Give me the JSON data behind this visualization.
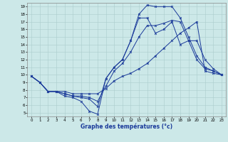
{
  "xlabel": "Graphe des températures (°c)",
  "xlim": [
    -0.5,
    23.5
  ],
  "ylim": [
    4.5,
    19.5
  ],
  "yticks": [
    5,
    6,
    7,
    8,
    9,
    10,
    11,
    12,
    13,
    14,
    15,
    16,
    17,
    18,
    19
  ],
  "xticks": [
    0,
    1,
    2,
    3,
    4,
    5,
    6,
    7,
    8,
    9,
    10,
    11,
    12,
    13,
    14,
    15,
    16,
    17,
    18,
    19,
    20,
    21,
    22,
    23
  ],
  "background_color": "#cce8e8",
  "line_color": "#1a3a9a",
  "grid_color": "#aacccc",
  "lines": [
    {
      "x": [
        0,
        1,
        2,
        3,
        4,
        5,
        6,
        7,
        8,
        9,
        10,
        11,
        12,
        13,
        14,
        15,
        16,
        17,
        18,
        19,
        20,
        21,
        22,
        23
      ],
      "y": [
        9.8,
        9.0,
        7.8,
        7.8,
        7.2,
        7.0,
        6.5,
        5.2,
        4.8,
        9.5,
        11.0,
        12.0,
        14.5,
        18.0,
        19.2,
        19.0,
        19.0,
        19.0,
        17.5,
        15.0,
        12.5,
        11.0,
        10.5,
        10.0
      ]
    },
    {
      "x": [
        0,
        1,
        2,
        3,
        4,
        5,
        6,
        7,
        8,
        9,
        10,
        11,
        12,
        13,
        14,
        15,
        16,
        17,
        18,
        19,
        20,
        21,
        22,
        23
      ],
      "y": [
        9.8,
        9.0,
        7.8,
        7.8,
        7.5,
        7.2,
        7.0,
        6.8,
        5.8,
        9.5,
        11.0,
        12.0,
        14.5,
        17.5,
        17.5,
        15.5,
        16.0,
        17.0,
        14.0,
        14.5,
        14.5,
        12.0,
        10.8,
        10.0
      ]
    },
    {
      "x": [
        0,
        1,
        2,
        3,
        4,
        5,
        6,
        7,
        8,
        9,
        10,
        11,
        12,
        13,
        14,
        15,
        16,
        17,
        18,
        19,
        20,
        21,
        22,
        23
      ],
      "y": [
        9.8,
        9.0,
        7.8,
        7.8,
        7.5,
        7.2,
        7.2,
        7.0,
        6.5,
        8.5,
        10.5,
        11.5,
        13.0,
        15.0,
        16.5,
        16.5,
        16.8,
        17.2,
        17.0,
        14.5,
        12.0,
        10.8,
        10.5,
        10.0
      ]
    },
    {
      "x": [
        0,
        1,
        2,
        3,
        4,
        5,
        6,
        7,
        8,
        9,
        10,
        11,
        12,
        13,
        14,
        15,
        16,
        17,
        18,
        19,
        20,
        21,
        22,
        23
      ],
      "y": [
        9.8,
        9.0,
        7.8,
        7.8,
        7.8,
        7.5,
        7.5,
        7.5,
        7.5,
        8.2,
        9.2,
        9.8,
        10.2,
        10.8,
        11.5,
        12.5,
        13.5,
        14.5,
        15.5,
        16.2,
        17.0,
        10.5,
        10.2,
        10.0
      ]
    }
  ]
}
